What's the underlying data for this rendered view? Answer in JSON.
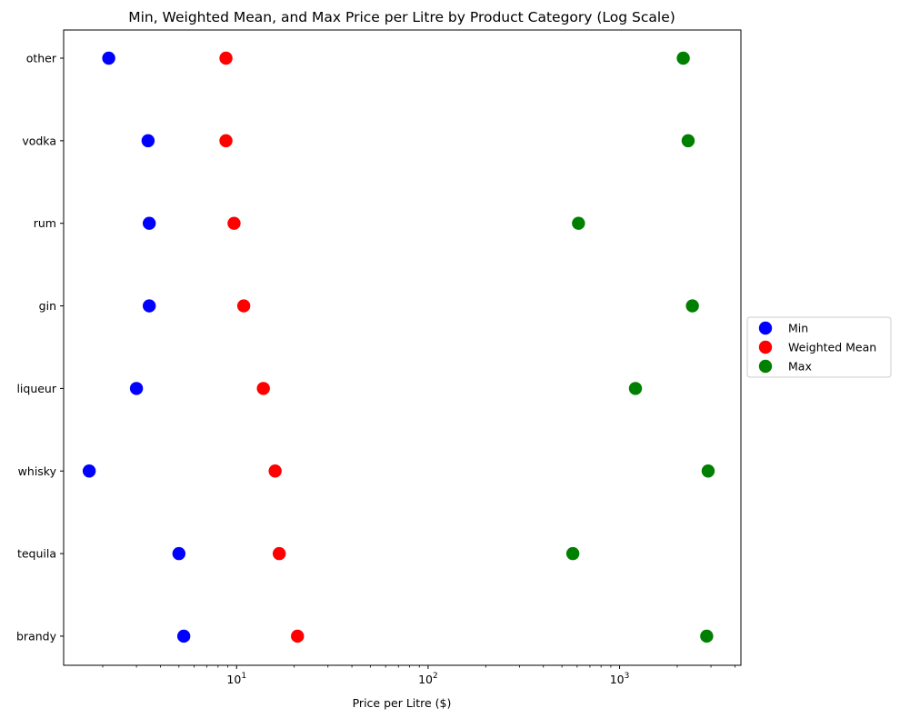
{
  "chart_data": {
    "type": "scatter",
    "title": "Min, Weighted Mean, and Max Price per Litre by Product Category (Log Scale)",
    "xlabel": "Price per Litre ($)",
    "ylabel": "",
    "x_scale": "log",
    "xlim": [
      1.25,
      4300
    ],
    "categories": [
      "other",
      "vodka",
      "rum",
      "gin",
      "liqueur",
      "whisky",
      "tequila",
      "brandy"
    ],
    "x_tick_labels": [
      {
        "base": "10",
        "exp": "1",
        "value": 10
      },
      {
        "base": "10",
        "exp": "2",
        "value": 100
      },
      {
        "base": "10",
        "exp": "3",
        "value": 1000
      }
    ],
    "series": [
      {
        "name": "Min",
        "color": "#0000ff",
        "values": [
          2.15,
          3.45,
          3.5,
          3.5,
          3.0,
          1.7,
          5.0,
          5.3
        ]
      },
      {
        "name": "Weighted Mean",
        "color": "#ff0000",
        "values": [
          8.8,
          8.8,
          9.7,
          10.9,
          13.8,
          15.9,
          16.7,
          20.8
        ]
      },
      {
        "name": "Max",
        "color": "#008000",
        "values": [
          2150,
          2280,
          610,
          2400,
          1210,
          2900,
          570,
          2850
        ]
      }
    ],
    "legend_position": "center-right, outside plot",
    "grid": false
  }
}
